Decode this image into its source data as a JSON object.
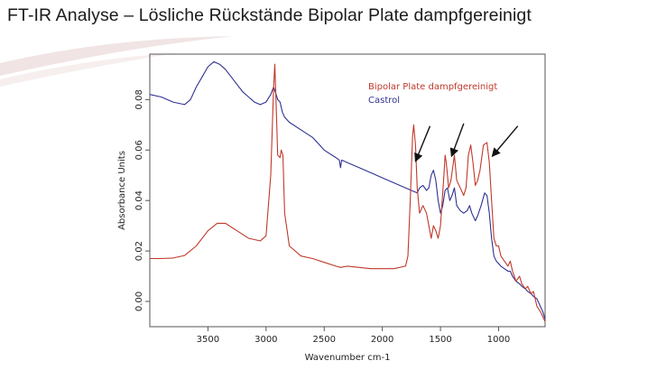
{
  "slide": {
    "title": "FT-IR Analyse – Lösliche Rückstände Bipolar Plate dampfgereinigt"
  },
  "chart_data": {
    "type": "line",
    "title": "",
    "xlabel": "Wavenumber cm-1",
    "ylabel": "Absorbance Units",
    "xlim": [
      4000,
      600
    ],
    "x_reversed": true,
    "ylim": [
      -0.01,
      0.098
    ],
    "xticks": [
      3500,
      3000,
      2500,
      2000,
      1500,
      1000
    ],
    "yticks": [
      0.0,
      0.02,
      0.04,
      0.06,
      0.08
    ],
    "ytick_labels": [
      "0.00",
      "0.02",
      "0.04",
      "0.06",
      "0.08"
    ],
    "grid": false,
    "legend_position": "top-right",
    "series": [
      {
        "name": "Bipolar Plate dampfgereinigt",
        "color": "#c0392b",
        "points": [
          [
            4000,
            0.017
          ],
          [
            3900,
            0.017
          ],
          [
            3800,
            0.0172
          ],
          [
            3700,
            0.0182
          ],
          [
            3600,
            0.022
          ],
          [
            3500,
            0.028
          ],
          [
            3420,
            0.031
          ],
          [
            3350,
            0.031
          ],
          [
            3250,
            0.028
          ],
          [
            3150,
            0.025
          ],
          [
            3050,
            0.024
          ],
          [
            3000,
            0.026
          ],
          [
            2960,
            0.05
          ],
          [
            2935,
            0.085
          ],
          [
            2925,
            0.094
          ],
          [
            2915,
            0.08
          ],
          [
            2900,
            0.058
          ],
          [
            2880,
            0.057
          ],
          [
            2870,
            0.06
          ],
          [
            2855,
            0.058
          ],
          [
            2840,
            0.035
          ],
          [
            2800,
            0.022
          ],
          [
            2700,
            0.018
          ],
          [
            2600,
            0.017
          ],
          [
            2500,
            0.0155
          ],
          [
            2400,
            0.014
          ],
          [
            2360,
            0.0135
          ],
          [
            2300,
            0.014
          ],
          [
            2200,
            0.0135
          ],
          [
            2100,
            0.013
          ],
          [
            2000,
            0.013
          ],
          [
            1900,
            0.013
          ],
          [
            1800,
            0.014
          ],
          [
            1780,
            0.018
          ],
          [
            1760,
            0.04
          ],
          [
            1740,
            0.065
          ],
          [
            1730,
            0.07
          ],
          [
            1715,
            0.062
          ],
          [
            1700,
            0.045
          ],
          [
            1680,
            0.035
          ],
          [
            1650,
            0.038
          ],
          [
            1620,
            0.035
          ],
          [
            1600,
            0.03
          ],
          [
            1580,
            0.025
          ],
          [
            1560,
            0.03
          ],
          [
            1540,
            0.028
          ],
          [
            1520,
            0.025
          ],
          [
            1500,
            0.03
          ],
          [
            1470,
            0.05
          ],
          [
            1460,
            0.058
          ],
          [
            1450,
            0.055
          ],
          [
            1430,
            0.045
          ],
          [
            1410,
            0.048
          ],
          [
            1380,
            0.058
          ],
          [
            1360,
            0.048
          ],
          [
            1330,
            0.045
          ],
          [
            1300,
            0.042
          ],
          [
            1280,
            0.045
          ],
          [
            1260,
            0.058
          ],
          [
            1240,
            0.062
          ],
          [
            1220,
            0.055
          ],
          [
            1200,
            0.046
          ],
          [
            1180,
            0.048
          ],
          [
            1160,
            0.052
          ],
          [
            1130,
            0.062
          ],
          [
            1100,
            0.063
          ],
          [
            1080,
            0.055
          ],
          [
            1060,
            0.04
          ],
          [
            1040,
            0.025
          ],
          [
            1020,
            0.022
          ],
          [
            1000,
            0.022
          ],
          [
            980,
            0.018
          ],
          [
            950,
            0.016
          ],
          [
            920,
            0.014
          ],
          [
            900,
            0.016
          ],
          [
            880,
            0.012
          ],
          [
            850,
            0.008
          ],
          [
            820,
            0.01
          ],
          [
            800,
            0.007
          ],
          [
            770,
            0.005
          ],
          [
            750,
            0.006
          ],
          [
            720,
            0.003
          ],
          [
            700,
            0.004
          ],
          [
            670,
            -0.002
          ],
          [
            640,
            -0.004
          ],
          [
            620,
            -0.006
          ],
          [
            600,
            -0.008
          ]
        ]
      },
      {
        "name": "Castrol",
        "color": "#2e3192",
        "points": [
          [
            4000,
            0.082
          ],
          [
            3900,
            0.081
          ],
          [
            3800,
            0.079
          ],
          [
            3750,
            0.0785
          ],
          [
            3700,
            0.078
          ],
          [
            3650,
            0.08
          ],
          [
            3600,
            0.085
          ],
          [
            3550,
            0.089
          ],
          [
            3500,
            0.093
          ],
          [
            3450,
            0.095
          ],
          [
            3400,
            0.094
          ],
          [
            3350,
            0.092
          ],
          [
            3300,
            0.089
          ],
          [
            3250,
            0.086
          ],
          [
            3200,
            0.083
          ],
          [
            3150,
            0.081
          ],
          [
            3100,
            0.079
          ],
          [
            3050,
            0.078
          ],
          [
            3000,
            0.079
          ],
          [
            2960,
            0.082
          ],
          [
            2935,
            0.085
          ],
          [
            2920,
            0.083
          ],
          [
            2900,
            0.08
          ],
          [
            2880,
            0.079
          ],
          [
            2860,
            0.075
          ],
          [
            2840,
            0.073
          ],
          [
            2800,
            0.071
          ],
          [
            2700,
            0.068
          ],
          [
            2600,
            0.065
          ],
          [
            2500,
            0.06
          ],
          [
            2400,
            0.057
          ],
          [
            2370,
            0.056
          ],
          [
            2360,
            0.053
          ],
          [
            2350,
            0.056
          ],
          [
            2300,
            0.055
          ],
          [
            2200,
            0.053
          ],
          [
            2100,
            0.051
          ],
          [
            2000,
            0.049
          ],
          [
            1900,
            0.047
          ],
          [
            1800,
            0.045
          ],
          [
            1750,
            0.044
          ],
          [
            1700,
            0.043
          ],
          [
            1680,
            0.045
          ],
          [
            1650,
            0.046
          ],
          [
            1620,
            0.044
          ],
          [
            1600,
            0.045
          ],
          [
            1580,
            0.05
          ],
          [
            1560,
            0.052
          ],
          [
            1540,
            0.048
          ],
          [
            1520,
            0.04
          ],
          [
            1500,
            0.035
          ],
          [
            1480,
            0.038
          ],
          [
            1460,
            0.044
          ],
          [
            1440,
            0.045
          ],
          [
            1420,
            0.04
          ],
          [
            1400,
            0.042
          ],
          [
            1380,
            0.045
          ],
          [
            1360,
            0.038
          ],
          [
            1330,
            0.036
          ],
          [
            1300,
            0.035
          ],
          [
            1270,
            0.036
          ],
          [
            1250,
            0.038
          ],
          [
            1230,
            0.035
          ],
          [
            1200,
            0.032
          ],
          [
            1180,
            0.034
          ],
          [
            1150,
            0.038
          ],
          [
            1120,
            0.043
          ],
          [
            1100,
            0.042
          ],
          [
            1080,
            0.035
          ],
          [
            1060,
            0.025
          ],
          [
            1040,
            0.018
          ],
          [
            1020,
            0.016
          ],
          [
            1000,
            0.015
          ],
          [
            980,
            0.014
          ],
          [
            950,
            0.013
          ],
          [
            920,
            0.012
          ],
          [
            900,
            0.012
          ],
          [
            880,
            0.01
          ],
          [
            850,
            0.008
          ],
          [
            820,
            0.007
          ],
          [
            800,
            0.006
          ],
          [
            770,
            0.005
          ],
          [
            750,
            0.004
          ],
          [
            720,
            0.003
          ],
          [
            700,
            0.002
          ],
          [
            670,
            0.001
          ],
          [
            640,
            -0.002
          ],
          [
            620,
            -0.004
          ],
          [
            600,
            -0.007
          ]
        ]
      }
    ],
    "annotations": [
      {
        "type": "arrow",
        "from": [
          1590,
          0.0695
        ],
        "to": [
          1715,
          0.0555
        ]
      },
      {
        "type": "arrow",
        "from": [
          1300,
          0.0705
        ],
        "to": [
          1405,
          0.0575
        ]
      },
      {
        "type": "arrow",
        "from": [
          835,
          0.0695
        ],
        "to": [
          1055,
          0.0575
        ]
      }
    ]
  }
}
